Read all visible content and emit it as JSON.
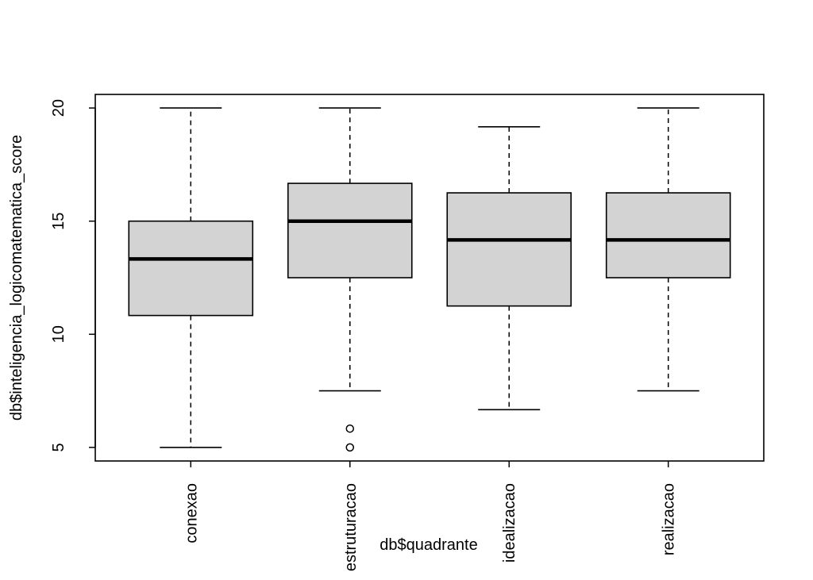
{
  "chart_data": {
    "type": "boxplot",
    "title": "",
    "xlabel": "db$quadrante",
    "ylabel": "db$inteligencia_logicomatematica_score",
    "ylim": [
      4.4,
      20.6
    ],
    "yticks": [
      5,
      10,
      15,
      20
    ],
    "ytick_labels": [
      "5",
      "10",
      "15",
      "20"
    ],
    "categories": [
      "conexao",
      "estruturacao",
      "idealizacao",
      "realizacao"
    ],
    "boxes": [
      {
        "name": "conexao",
        "whisker_low": 5,
        "q1": 10.83,
        "median": 13.33,
        "q3": 15,
        "whisker_high": 20,
        "outliers": []
      },
      {
        "name": "estruturacao",
        "whisker_low": 7.5,
        "q1": 12.5,
        "median": 15,
        "q3": 16.67,
        "whisker_high": 20,
        "outliers": [
          5,
          5.83
        ]
      },
      {
        "name": "idealizacao",
        "whisker_low": 6.67,
        "q1": 11.25,
        "median": 14.17,
        "q3": 16.25,
        "whisker_high": 19.17,
        "outliers": []
      },
      {
        "name": "realizacao",
        "whisker_low": 7.5,
        "q1": 12.5,
        "median": 14.17,
        "q3": 16.25,
        "whisker_high": 20,
        "outliers": []
      }
    ],
    "box_fill": "#d3d3d3",
    "grid": false,
    "legend": "none"
  }
}
